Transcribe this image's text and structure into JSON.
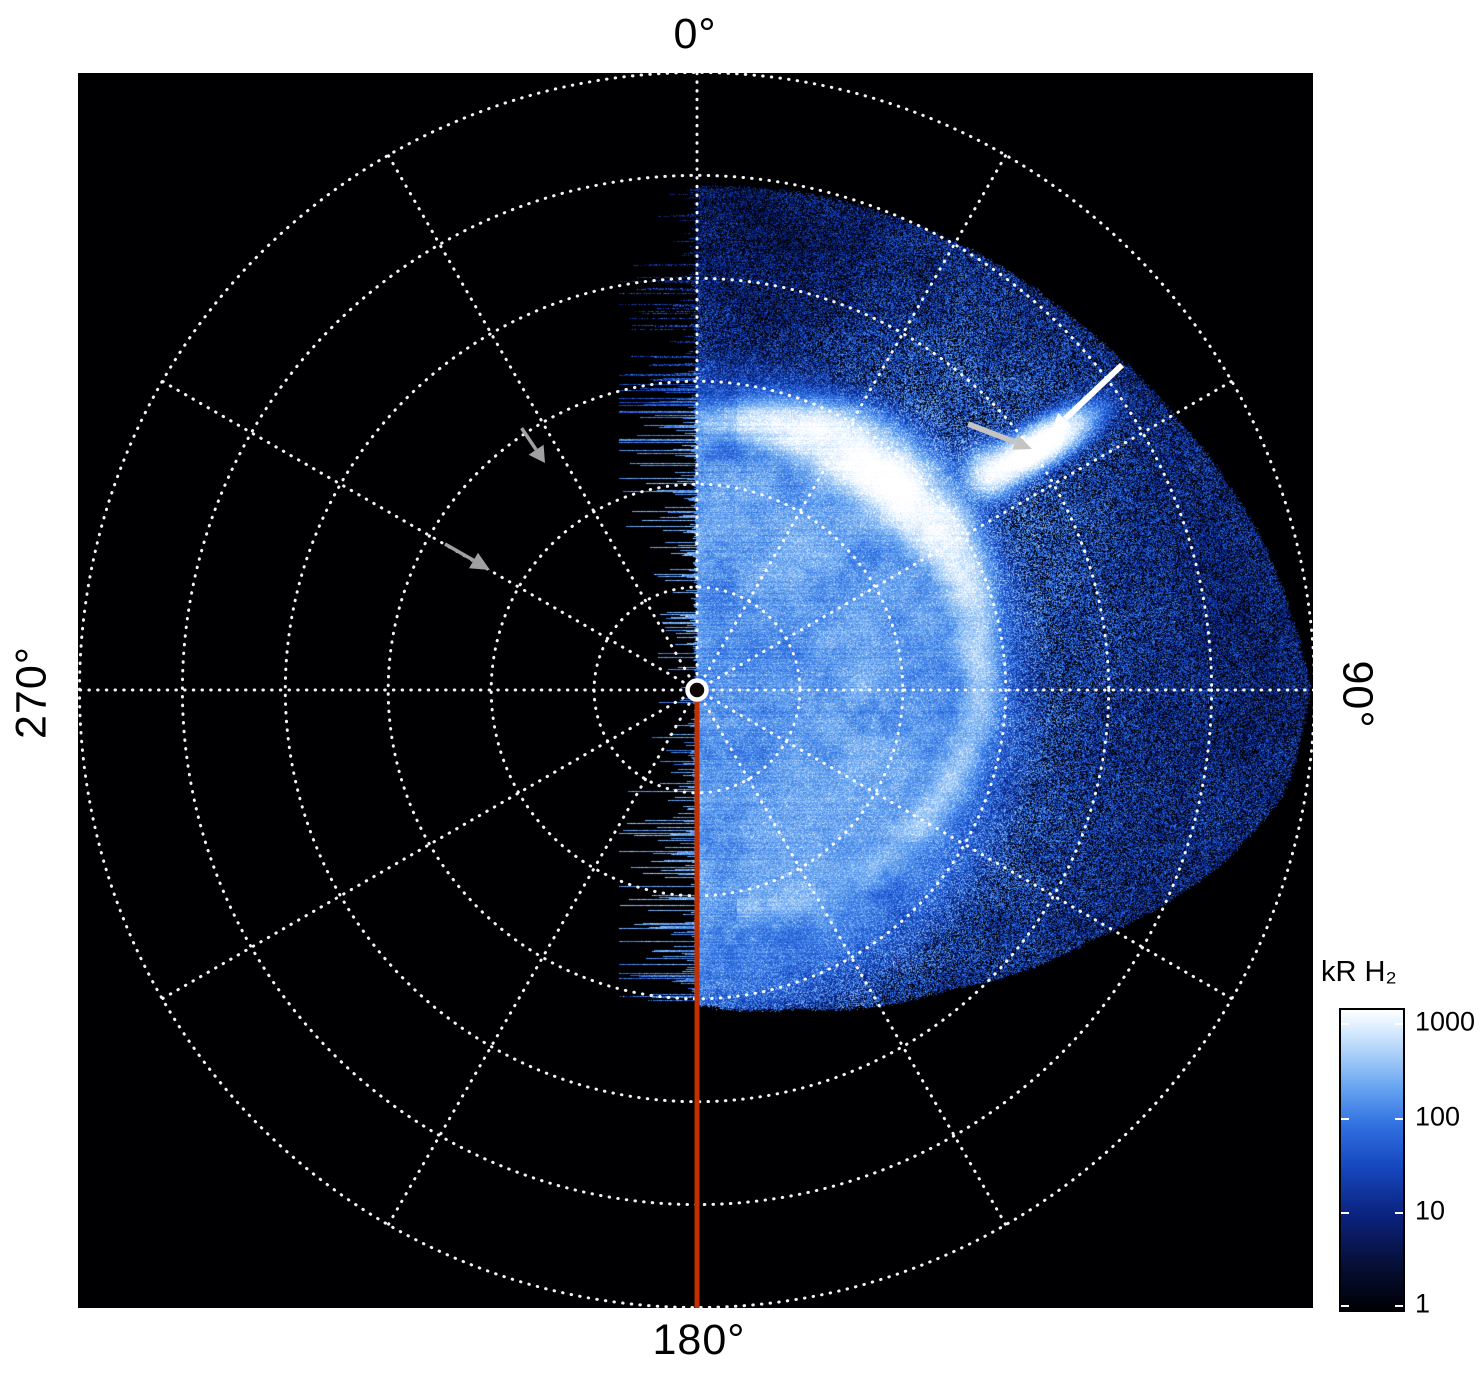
{
  "figure": {
    "description": "Polar projection image of auroral H2 emission shown on a log blue-white color scale; image data fills the 0°-180° half of the polar grid.",
    "background": "#ffffff",
    "plot_background": "#000000"
  },
  "chart_data": {
    "type": "heatmap",
    "projection": "polar",
    "angular_labels": {
      "top": "0°",
      "right": "90°",
      "bottom": "180°",
      "left": "270°"
    },
    "grid": {
      "style": "dotted",
      "color": "#ffffff",
      "rings": 6,
      "spoke_step_deg": 30
    },
    "meridian_line": {
      "angle_deg": 180,
      "color": "#c23000"
    },
    "center_marker": {
      "shape": "circle",
      "color": "#ffffff"
    },
    "data_extent": {
      "angle_deg": [
        0,
        180
      ],
      "note": "left half of grid (180°-360°) contains no image data"
    },
    "colorbar": {
      "title": "kR H₂",
      "scale": "log",
      "range": [
        1,
        1000
      ],
      "tick_labels": [
        "1000",
        "100",
        "10",
        "1"
      ],
      "colormap": [
        {
          "p": 0.0,
          "c": "#000004"
        },
        {
          "p": 0.16,
          "c": "#06103a"
        },
        {
          "p": 0.32,
          "c": "#0b2380"
        },
        {
          "p": 0.48,
          "c": "#1648c0"
        },
        {
          "p": 0.62,
          "c": "#3272e2"
        },
        {
          "p": 0.74,
          "c": "#66a4f0"
        },
        {
          "p": 0.85,
          "c": "#a8cef8"
        },
        {
          "p": 0.94,
          "c": "#dceeff"
        },
        {
          "p": 1.0,
          "c": "#ffffff"
        }
      ]
    },
    "features": [
      {
        "name": "main-auroral-oval",
        "appearance": "bright white partial ring around the pole, brightest in the upper-right quadrant",
        "peak_value_kR": 1000
      },
      {
        "name": "bright-auroral-spot",
        "appearance": "elongated white patch on the oval",
        "marked_by": [
          "white-arrow",
          "gray-arrow-at-spot"
        ]
      },
      {
        "name": "diffuse-inner-emission",
        "appearance": "light blue annulus inside/around the oval",
        "approx_value_kR": "100-300"
      },
      {
        "name": "background-speckle",
        "appearance": "dark blue noise speckle filling the data half",
        "approx_value_kR": "1-30"
      }
    ],
    "annotations": [
      {
        "name": "white-arrow",
        "color": "#ffffff",
        "points_to": "bright auroral spot"
      },
      {
        "name": "gray-arrow-at-spot",
        "color": "#c4c4c4",
        "points_to": "bright auroral spot"
      },
      {
        "name": "gray-arrow-spoke-330",
        "color": "#a0a0a0",
        "points": "inward along 330° spoke"
      },
      {
        "name": "gray-arrow-spoke-300",
        "color": "#a0a0a0",
        "points": "inward along 300° spoke"
      }
    ]
  }
}
